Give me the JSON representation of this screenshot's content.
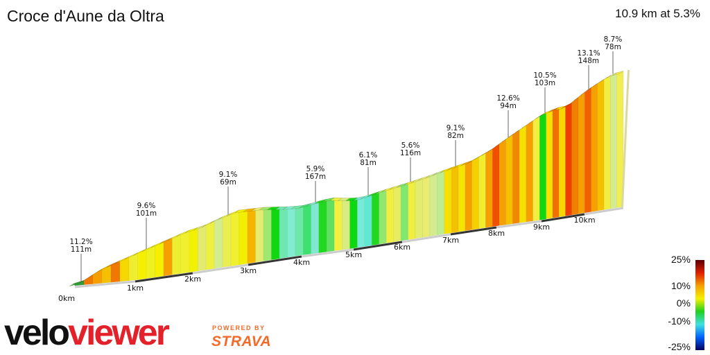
{
  "header": {
    "title": "Croce d'Aune da Oltra",
    "summary": "10.9 km at 5.3%"
  },
  "chart_data": {
    "type": "area",
    "title": "Croce d'Aune da Oltra",
    "distance_km": 10.9,
    "avg_gradient_pct": 5.3,
    "x_ticks": [
      "0km",
      "1km",
      "2km",
      "3km",
      "4km",
      "5km",
      "6km",
      "7km",
      "8km",
      "9km",
      "10km"
    ],
    "annotations": [
      {
        "km": 0.1,
        "gradient": "11.2%",
        "length": "111m"
      },
      {
        "km": 1.2,
        "gradient": "9.6%",
        "length": "101m"
      },
      {
        "km": 2.7,
        "gradient": "9.1%",
        "length": "69m"
      },
      {
        "km": 4.3,
        "gradient": "5.9%",
        "length": "167m"
      },
      {
        "km": 5.3,
        "gradient": "6.1%",
        "length": "81m"
      },
      {
        "km": 6.2,
        "gradient": "5.6%",
        "length": "116m"
      },
      {
        "km": 7.1,
        "gradient": "9.1%",
        "length": "82m"
      },
      {
        "km": 8.3,
        "gradient": "12.6%",
        "length": "94m"
      },
      {
        "km": 9.1,
        "gradient": "10.5%",
        "length": "103m"
      },
      {
        "km": 10.1,
        "gradient": "13.1%",
        "length": "148m"
      },
      {
        "km": 10.6,
        "gradient": "8.7%",
        "length": "78m"
      }
    ],
    "segment_colors": [
      "#2e9e3a",
      "#f07800",
      "#f5a000",
      "#f5c000",
      "#f07800",
      "#f5d800",
      "#f0ec30",
      "#f5f000",
      "#eef020",
      "#f5f000",
      "#f5a000",
      "#eeee30",
      "#f0f030",
      "#f2f200",
      "#e2ea70",
      "#eef040",
      "#d4ec90",
      "#eaee50",
      "#f0f030",
      "#f2f000",
      "#f5b400",
      "#e6ec70",
      "#9ee870",
      "#10d810",
      "#6ee8b0",
      "#80ecd0",
      "#6ee8a8",
      "#3ee070",
      "#80e8d0",
      "#20d820",
      "#60e060",
      "#f0f040",
      "#d8ec80",
      "#10d810",
      "#78eadc",
      "#60e8d0",
      "#20d820",
      "#90e870",
      "#f0ee40",
      "#e8ec60",
      "#80e870",
      "#f0ee40",
      "#e4ec70",
      "#e8ec70",
      "#d4ec90",
      "#c0ec90",
      "#f5e000",
      "#f5c000",
      "#f5e400",
      "#f5a000",
      "#f5d000",
      "#f0ec30",
      "#f5a000",
      "#f05000",
      "#f5a000",
      "#f5c000",
      "#f08800",
      "#f5e000",
      "#f5a000",
      "#f2ee40",
      "#10d810",
      "#f5e000",
      "#f07000",
      "#f5d800",
      "#f04000",
      "#f08000",
      "#f5a000",
      "#f06000",
      "#f5a000",
      "#f5c000",
      "#f0ee40",
      "#d4ec90",
      "#f0ee50"
    ],
    "legend": {
      "labels": [
        "25%",
        "10%",
        "0%",
        "-10%",
        "-25%"
      ],
      "colors": [
        "#5a0000",
        "#e02000",
        "#f5a000",
        "#f5f000",
        "#20d020",
        "#40e0e0",
        "#0060ff",
        "#000060"
      ]
    }
  },
  "branding": {
    "logo_part1": "velo",
    "logo_part2": "viewer",
    "powered_by": "POWERED BY",
    "strava": "STRAVA"
  }
}
